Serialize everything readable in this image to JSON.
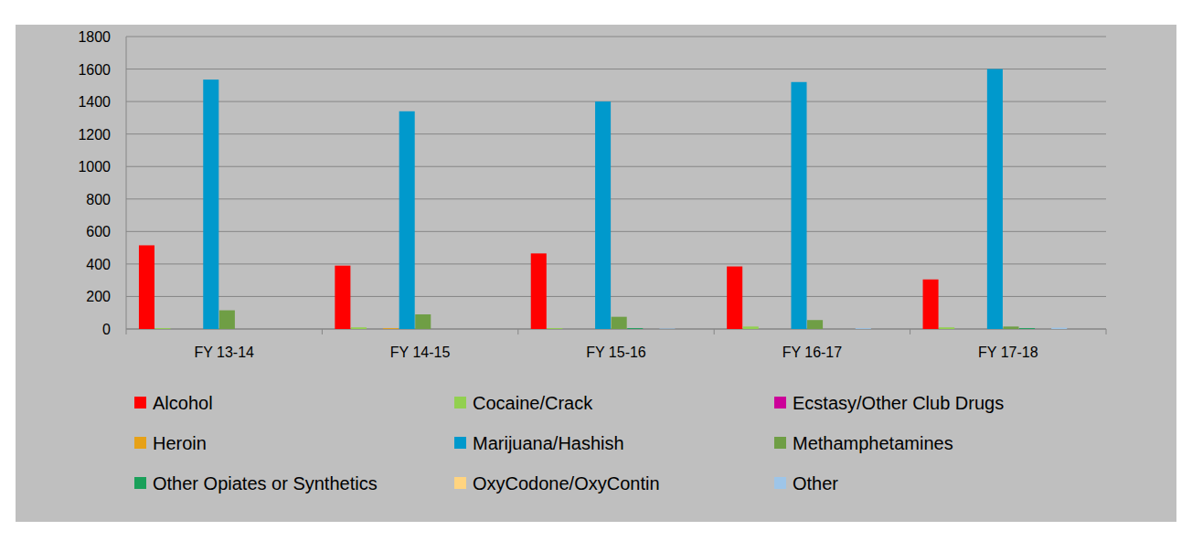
{
  "chart_data": {
    "type": "bar",
    "categories": [
      "FY 13-14",
      "FY 14-15",
      "FY 15-16",
      "FY 16-17",
      "FY 17-18"
    ],
    "series": [
      {
        "name": "Alcohol",
        "color": "#ff0000",
        "values": [
          515,
          390,
          465,
          385,
          305
        ]
      },
      {
        "name": "Cocaine/Crack",
        "color": "#92d050",
        "values": [
          5,
          10,
          5,
          15,
          10
        ]
      },
      {
        "name": "Ecstasy/Other Club Drugs",
        "color": "#cc0099",
        "values": [
          0,
          0,
          0,
          0,
          0
        ]
      },
      {
        "name": "Heroin",
        "color": "#e6a118",
        "values": [
          0,
          5,
          0,
          0,
          0
        ]
      },
      {
        "name": "Marijuana/Hashish",
        "color": "#0099cc",
        "values": [
          1535,
          1340,
          1400,
          1520,
          1600
        ]
      },
      {
        "name": "Methamphetamines",
        "color": "#6f9e45",
        "values": [
          115,
          90,
          75,
          55,
          15
        ]
      },
      {
        "name": "Other Opiates or Synthetics",
        "color": "#1aa05a",
        "values": [
          0,
          0,
          5,
          0,
          5
        ]
      },
      {
        "name": "OxyCodone/OxyContin",
        "color": "#ffd480",
        "values": [
          0,
          0,
          0,
          0,
          0
        ]
      },
      {
        "name": "Other",
        "color": "#9ec5e8",
        "values": [
          0,
          0,
          3,
          5,
          8
        ]
      }
    ],
    "ylim": [
      0,
      1800
    ],
    "yticks": [
      0,
      200,
      400,
      600,
      800,
      1000,
      1200,
      1400,
      1600,
      1800
    ],
    "grid": true,
    "legend": "bottom"
  }
}
